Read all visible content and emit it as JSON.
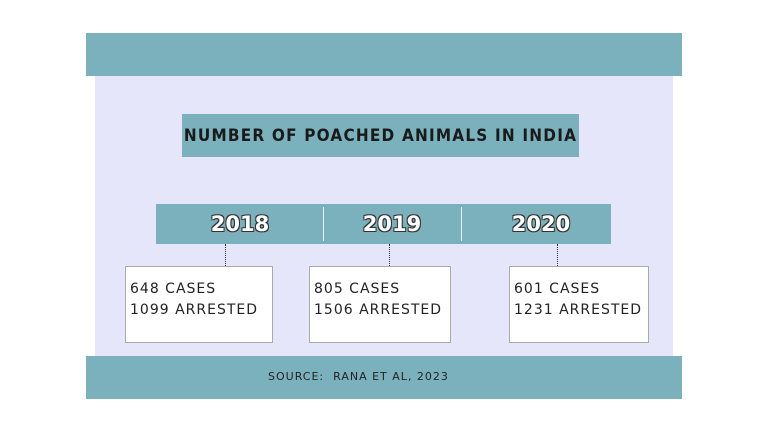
{
  "title": "NUMBER OF POACHED ANIMALS IN INDIA",
  "years": [
    {
      "year": "2018",
      "lines": [
        "648 CASES",
        "1099 ARRESTED"
      ]
    },
    {
      "year": "2019",
      "lines": [
        "805 CASES",
        "1506 ARRESTED"
      ]
    },
    {
      "year": "2020",
      "lines": [
        "601 CASES",
        "1231 ARRESTED"
      ]
    }
  ],
  "source": "SOURCE:  RANA ET AL, 2023"
}
